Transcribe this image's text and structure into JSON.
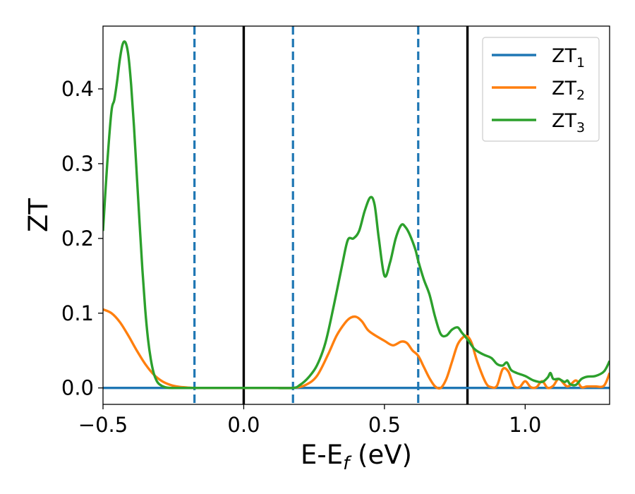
{
  "chart_data": {
    "type": "line",
    "xlabel_main": "E-E",
    "xlabel_sub": "f",
    "xlabel_unit": " (eV)",
    "ylabel": "ZT",
    "xlim": [
      -0.5,
      1.3
    ],
    "ylim": [
      -0.022,
      0.484
    ],
    "xticks": [
      {
        "value": -0.5,
        "label": "−0.5"
      },
      {
        "value": 0.0,
        "label": "0.0"
      },
      {
        "value": 0.5,
        "label": "0.5"
      },
      {
        "value": 1.0,
        "label": "1.0"
      }
    ],
    "yticks": [
      {
        "value": 0.0,
        "label": "0.0"
      },
      {
        "value": 0.1,
        "label": "0.1"
      },
      {
        "value": 0.2,
        "label": "0.2"
      },
      {
        "value": 0.3,
        "label": "0.3"
      },
      {
        "value": 0.4,
        "label": "0.4"
      }
    ],
    "vlines": [
      {
        "x": -0.175,
        "style": "dashed",
        "color": "#1f77b4"
      },
      {
        "x": 0.0,
        "style": "solid",
        "color": "#000000"
      },
      {
        "x": 0.175,
        "style": "dashed",
        "color": "#1f77b4"
      },
      {
        "x": 0.62,
        "style": "dashed",
        "color": "#1f77b4"
      },
      {
        "x": 0.795,
        "style": "solid",
        "color": "#000000"
      }
    ],
    "legend_position": "upper-right",
    "grid": false,
    "series": [
      {
        "name": "ZT",
        "name_sub": "1",
        "color": "#1f77b4",
        "x": [
          -0.5,
          1.3
        ],
        "y": [
          0.0,
          0.0
        ]
      },
      {
        "name": "ZT",
        "name_sub": "2",
        "color": "#ff7f0e",
        "x": [
          -0.5,
          -0.47,
          -0.44,
          -0.41,
          -0.38,
          -0.35,
          -0.32,
          -0.29,
          -0.26,
          -0.23,
          -0.2,
          -0.175,
          -0.1,
          0.0,
          0.1,
          0.175,
          0.22,
          0.26,
          0.3,
          0.33,
          0.36,
          0.38,
          0.4,
          0.42,
          0.44,
          0.46,
          0.5,
          0.53,
          0.56,
          0.58,
          0.6,
          0.62,
          0.64,
          0.66,
          0.68,
          0.7,
          0.72,
          0.74,
          0.76,
          0.78,
          0.795,
          0.81,
          0.83,
          0.86,
          0.88,
          0.9,
          0.92,
          0.94,
          0.96,
          0.98,
          1.0,
          1.02,
          1.04,
          1.06,
          1.08,
          1.1,
          1.12,
          1.15,
          1.18,
          1.2,
          1.22,
          1.25,
          1.28,
          1.3
        ],
        "y": [
          0.105,
          0.1,
          0.088,
          0.07,
          0.05,
          0.032,
          0.018,
          0.009,
          0.004,
          0.0015,
          0.0005,
          0.0,
          0.0,
          0.0,
          0.0,
          0.0,
          0.004,
          0.016,
          0.045,
          0.07,
          0.087,
          0.094,
          0.095,
          0.089,
          0.078,
          0.072,
          0.063,
          0.057,
          0.062,
          0.06,
          0.05,
          0.043,
          0.028,
          0.013,
          0.002,
          0.0,
          0.012,
          0.035,
          0.058,
          0.068,
          0.069,
          0.06,
          0.035,
          0.007,
          0.001,
          0.003,
          0.025,
          0.022,
          0.003,
          0.001,
          0.009,
          0.001,
          0.001,
          0.009,
          0.0,
          0.003,
          0.012,
          0.002,
          0.01,
          0.001,
          0.002,
          0.002,
          0.003,
          0.02
        ]
      },
      {
        "name": "ZT",
        "name_sub": "3",
        "color": "#2ca02c",
        "x": [
          -0.5,
          -0.485,
          -0.47,
          -0.46,
          -0.45,
          -0.44,
          -0.43,
          -0.42,
          -0.41,
          -0.4,
          -0.39,
          -0.38,
          -0.37,
          -0.36,
          -0.35,
          -0.34,
          -0.33,
          -0.32,
          -0.31,
          -0.3,
          -0.28,
          -0.26,
          -0.24,
          -0.22,
          -0.2,
          -0.175,
          -0.1,
          0.0,
          0.1,
          0.175,
          0.2,
          0.23,
          0.26,
          0.29,
          0.32,
          0.35,
          0.37,
          0.39,
          0.41,
          0.43,
          0.45,
          0.465,
          0.48,
          0.5,
          0.52,
          0.54,
          0.56,
          0.575,
          0.59,
          0.61,
          0.62,
          0.64,
          0.66,
          0.68,
          0.7,
          0.72,
          0.74,
          0.76,
          0.775,
          0.795,
          0.82,
          0.85,
          0.88,
          0.9,
          0.92,
          0.935,
          0.95,
          0.97,
          1.0,
          1.03,
          1.06,
          1.08,
          1.09,
          1.1,
          1.12,
          1.14,
          1.15,
          1.16,
          1.18,
          1.2,
          1.22,
          1.25,
          1.28,
          1.3
        ],
        "y": [
          0.21,
          0.3,
          0.37,
          0.385,
          0.41,
          0.44,
          0.46,
          0.462,
          0.445,
          0.405,
          0.35,
          0.285,
          0.22,
          0.158,
          0.105,
          0.065,
          0.038,
          0.02,
          0.01,
          0.005,
          0.001,
          0.0,
          0.0,
          0.0,
          0.0,
          0.0,
          0.0,
          0.0,
          0.0,
          0.0,
          0.004,
          0.014,
          0.03,
          0.06,
          0.11,
          0.165,
          0.198,
          0.2,
          0.21,
          0.237,
          0.255,
          0.245,
          0.2,
          0.15,
          0.168,
          0.2,
          0.218,
          0.215,
          0.205,
          0.185,
          0.17,
          0.145,
          0.125,
          0.095,
          0.072,
          0.07,
          0.078,
          0.081,
          0.074,
          0.065,
          0.052,
          0.045,
          0.04,
          0.032,
          0.03,
          0.034,
          0.024,
          0.02,
          0.016,
          0.01,
          0.008,
          0.014,
          0.02,
          0.012,
          0.012,
          0.008,
          0.01,
          0.005,
          0.004,
          0.012,
          0.015,
          0.016,
          0.022,
          0.036
        ]
      }
    ]
  }
}
